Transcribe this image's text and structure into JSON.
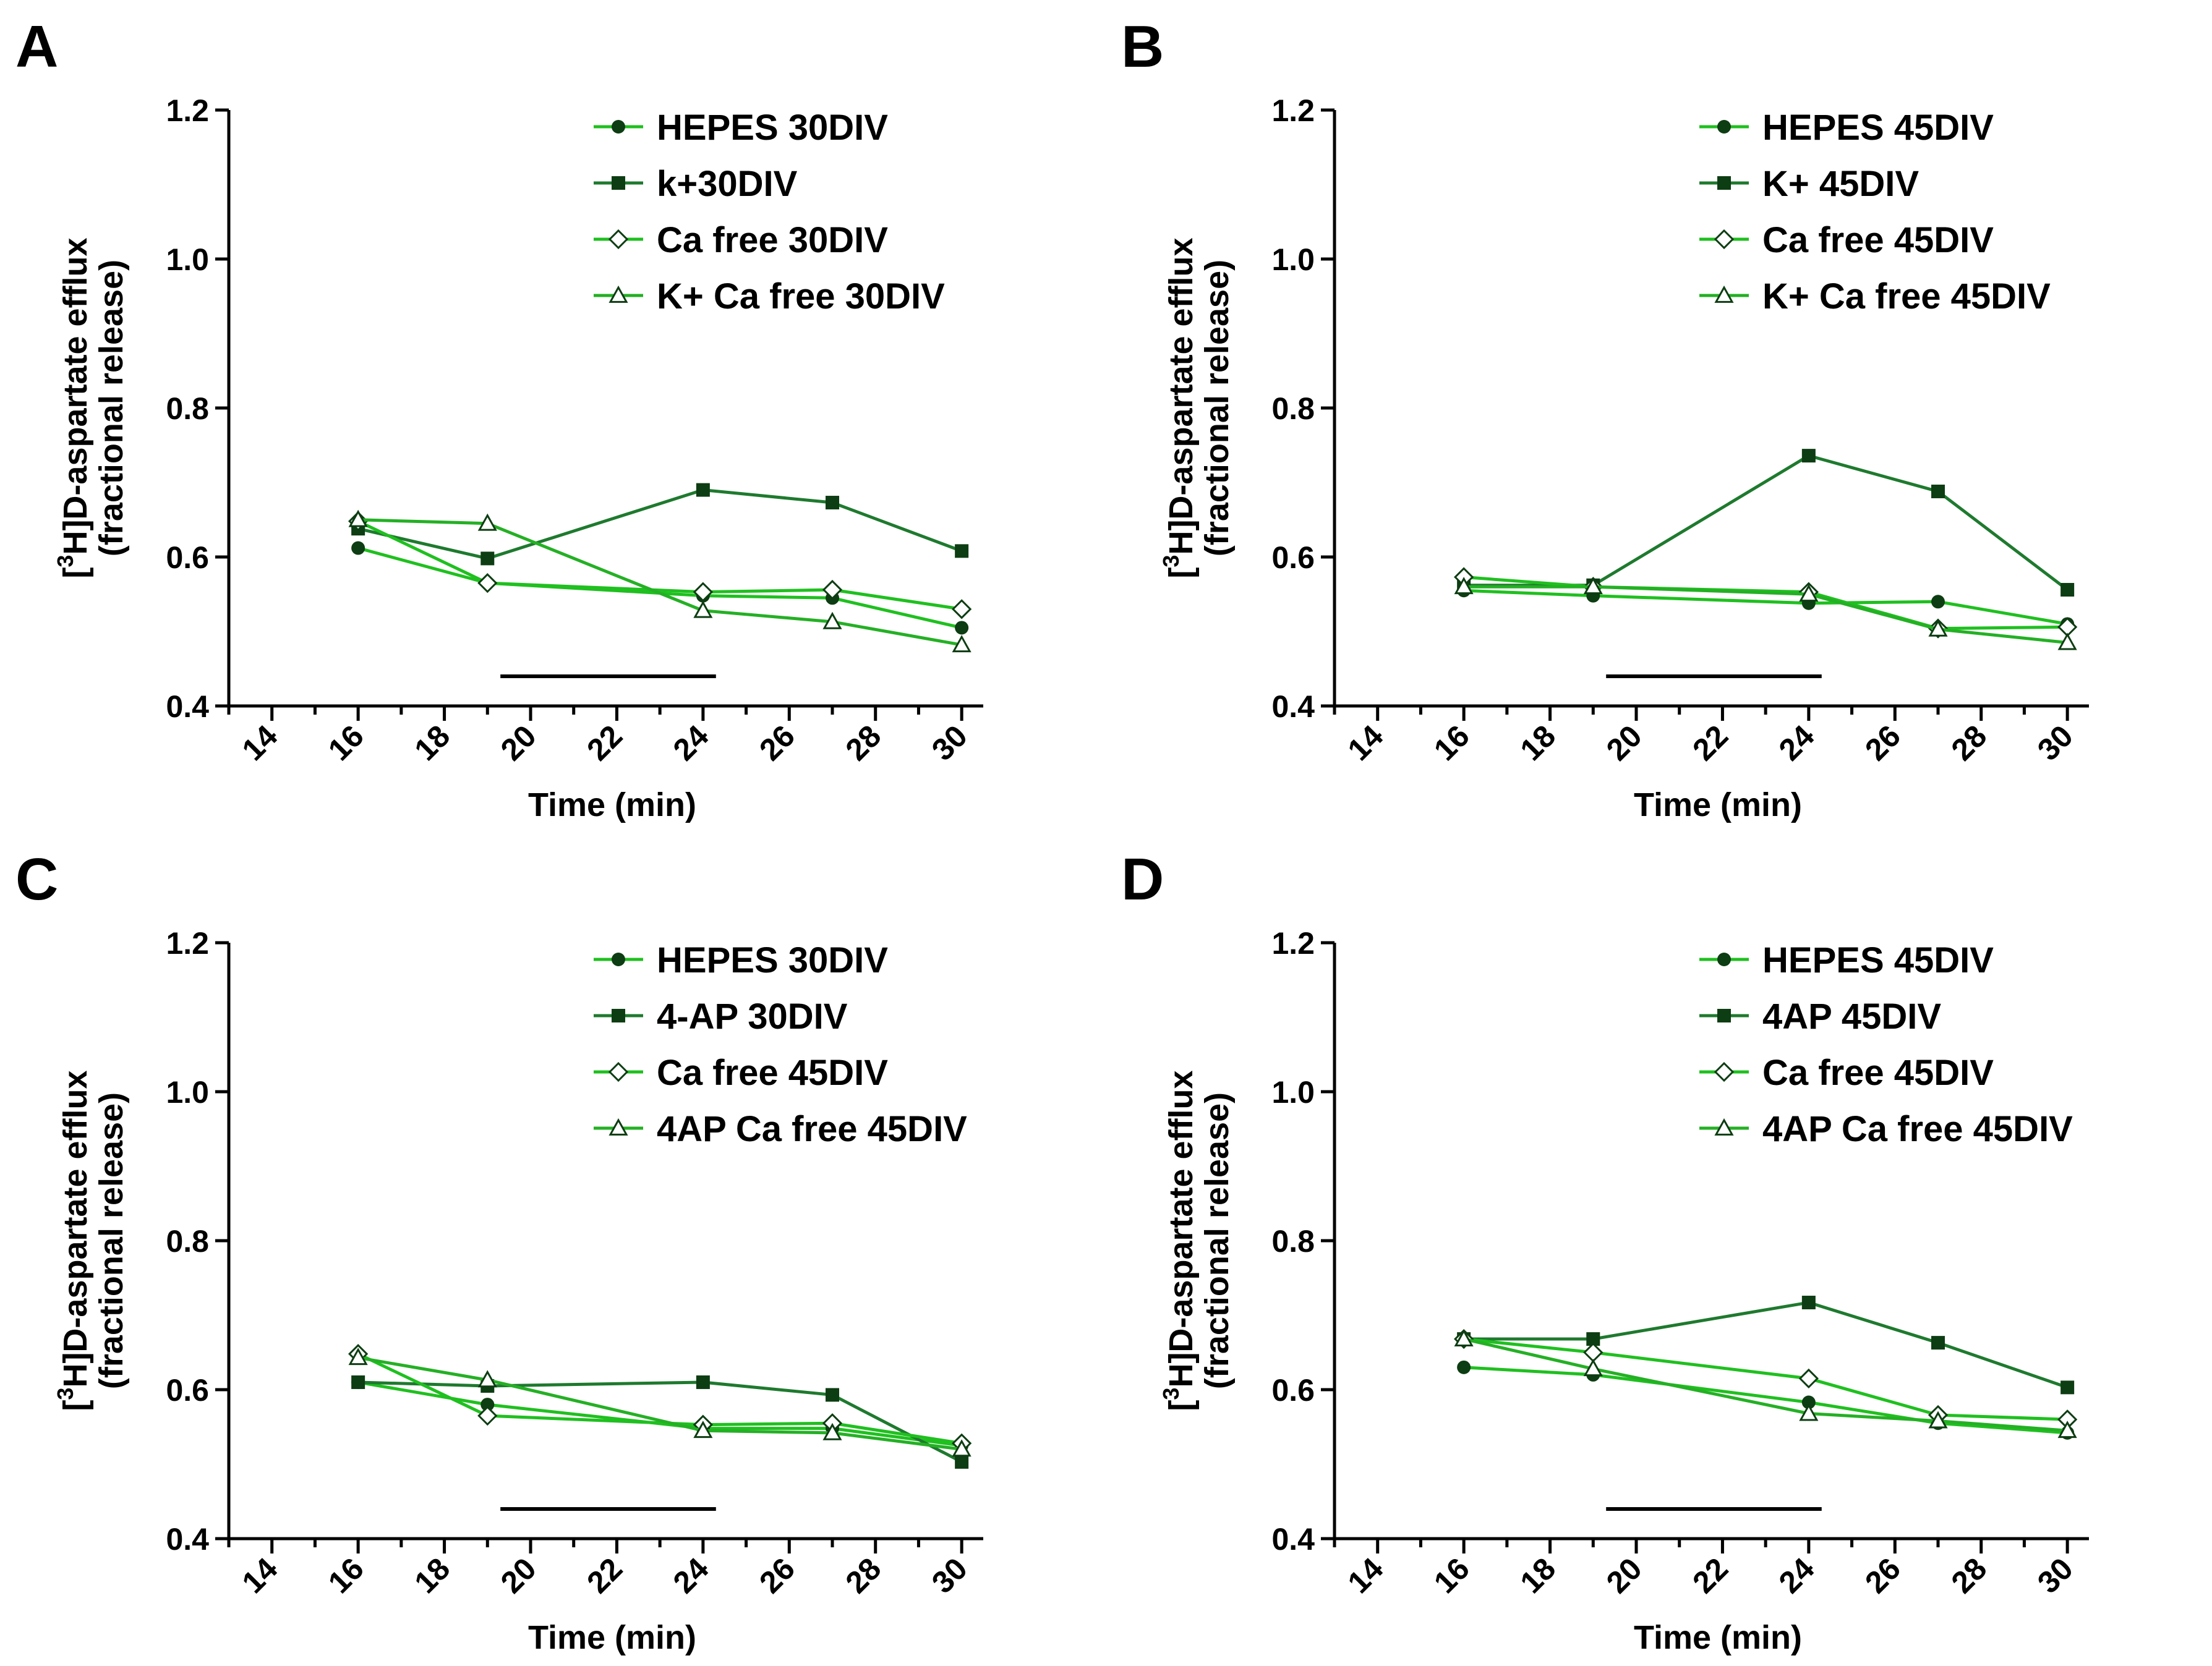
{
  "colors": {
    "bright_green": "#1fc01f",
    "dark_green": "#1e7a2e",
    "mid_green": "#24b024",
    "marker_dark": "#0d3d12",
    "axis": "#000000"
  },
  "chart_data": [
    {
      "panel": "A",
      "type": "line",
      "xlabel": "Time (min)",
      "ylabel_line1": "[3H]D-aspartate efflux",
      "ylabel_line2": "(fractional release)",
      "xlim": [
        13,
        30.5
      ],
      "ylim": [
        0.4,
        1.2
      ],
      "xticks": [
        14,
        16,
        18,
        20,
        22,
        24,
        26,
        28,
        30
      ],
      "yticks": [
        0.4,
        0.6,
        0.8,
        1.0,
        1.2
      ],
      "ytick_labels": [
        "0.4",
        "0.6",
        "0.8",
        "1.0",
        "1.2"
      ],
      "stimulus_bar": [
        19.3,
        24.3
      ],
      "legend_position": "top-right",
      "series": [
        {
          "name": "HEPES 30DIV",
          "marker": "circle",
          "x": [
            16,
            19,
            24,
            27,
            30
          ],
          "values": [
            0.612,
            0.565,
            0.548,
            0.545,
            0.505
          ]
        },
        {
          "name": "k+30DIV",
          "marker": "square",
          "x": [
            16,
            19,
            24,
            27,
            30
          ],
          "values": [
            0.638,
            0.598,
            0.69,
            0.673,
            0.608
          ]
        },
        {
          "name": "Ca free 30DIV",
          "marker": "diamond",
          "x": [
            16,
            19,
            24,
            27,
            30
          ],
          "values": [
            0.648,
            0.565,
            0.553,
            0.556,
            0.53
          ]
        },
        {
          "name": "K+ Ca free 30DIV",
          "marker": "triangle",
          "x": [
            16,
            19,
            24,
            27,
            30
          ],
          "values": [
            0.65,
            0.645,
            0.528,
            0.513,
            0.482
          ]
        }
      ]
    },
    {
      "panel": "B",
      "type": "line",
      "xlabel": "Time (min)",
      "ylabel_line1": "[3H]D-aspartate efflux",
      "ylabel_line2": "(fractional release)",
      "xlim": [
        13,
        30.5
      ],
      "ylim": [
        0.4,
        1.2
      ],
      "xticks": [
        14,
        16,
        18,
        20,
        22,
        24,
        26,
        28,
        30
      ],
      "yticks": [
        0.4,
        0.6,
        0.8,
        1.0,
        1.2
      ],
      "ytick_labels": [
        "0.4",
        "0.6",
        "0.8",
        "1.0",
        "1.2"
      ],
      "stimulus_bar": [
        19.3,
        24.3
      ],
      "legend_position": "top-right",
      "series": [
        {
          "name": "HEPES 45DIV",
          "marker": "circle",
          "x": [
            16,
            19,
            24,
            27,
            30
          ],
          "values": [
            0.555,
            0.548,
            0.538,
            0.54,
            0.51
          ]
        },
        {
          "name": "K+ 45DIV",
          "marker": "square",
          "x": [
            16,
            19,
            24,
            27,
            30
          ],
          "values": [
            0.562,
            0.562,
            0.736,
            0.688,
            0.556
          ]
        },
        {
          "name": "Ca free 45DIV",
          "marker": "diamond",
          "x": [
            16,
            19,
            24,
            27,
            30
          ],
          "values": [
            0.573,
            0.56,
            0.553,
            0.504,
            0.506
          ]
        },
        {
          "name": "K+ Ca free 45DIV",
          "marker": "triangle",
          "x": [
            16,
            19,
            24,
            27,
            30
          ],
          "values": [
            0.56,
            0.56,
            0.55,
            0.503,
            0.485
          ]
        }
      ]
    },
    {
      "panel": "C",
      "type": "line",
      "xlabel": "Time (min)",
      "ylabel_line1": "[3H]D-aspartate efflux",
      "ylabel_line2": "(fractional release)",
      "xlim": [
        13,
        30.5
      ],
      "ylim": [
        0.4,
        1.2
      ],
      "xticks": [
        14,
        16,
        18,
        20,
        22,
        24,
        26,
        28,
        30
      ],
      "yticks": [
        0.4,
        0.6,
        0.8,
        1.0,
        1.2
      ],
      "ytick_labels": [
        "0.4",
        "0.6",
        "0.8",
        "1.0",
        "1.2"
      ],
      "stimulus_bar": [
        19.3,
        24.3
      ],
      "legend_position": "top-right",
      "series": [
        {
          "name": "HEPES 30DIV",
          "marker": "circle",
          "x": [
            16,
            19,
            24,
            27,
            30
          ],
          "values": [
            0.61,
            0.58,
            0.548,
            0.548,
            0.525
          ]
        },
        {
          "name": "4-AP 30DIV",
          "marker": "square",
          "x": [
            16,
            19,
            24,
            27,
            30
          ],
          "values": [
            0.61,
            0.605,
            0.61,
            0.593,
            0.503
          ]
        },
        {
          "name": "Ca free 45DIV",
          "marker": "diamond",
          "x": [
            16,
            19,
            24,
            27,
            30
          ],
          "values": [
            0.648,
            0.565,
            0.553,
            0.555,
            0.528
          ]
        },
        {
          "name": "4AP Ca free 45DIV",
          "marker": "triangle",
          "x": [
            16,
            19,
            24,
            27,
            30
          ],
          "values": [
            0.643,
            0.613,
            0.545,
            0.542,
            0.52
          ]
        }
      ]
    },
    {
      "panel": "D",
      "type": "line",
      "xlabel": "Time (min)",
      "ylabel_line1": "[3H]D-aspartate efflux",
      "ylabel_line2": "(fractional release)",
      "xlim": [
        13,
        30.5
      ],
      "ylim": [
        0.4,
        1.2
      ],
      "xticks": [
        14,
        16,
        18,
        20,
        22,
        24,
        26,
        28,
        30
      ],
      "yticks": [
        0.4,
        0.6,
        0.8,
        1.0,
        1.2
      ],
      "ytick_labels": [
        "0.4",
        "0.6",
        "0.8",
        "1.0",
        "1.2"
      ],
      "stimulus_bar": [
        19.3,
        24.3
      ],
      "legend_position": "top-right",
      "series": [
        {
          "name": "HEPES 45DIV",
          "marker": "circle",
          "x": [
            16,
            19,
            24,
            27,
            30
          ],
          "values": [
            0.63,
            0.62,
            0.583,
            0.555,
            0.542
          ]
        },
        {
          "name": "4AP 45DIV",
          "marker": "square",
          "x": [
            16,
            19,
            24,
            27,
            30
          ],
          "values": [
            0.668,
            0.668,
            0.717,
            0.663,
            0.603
          ]
        },
        {
          "name": "Ca free 45DIV",
          "marker": "diamond",
          "x": [
            16,
            19,
            24,
            27,
            30
          ],
          "values": [
            0.668,
            0.65,
            0.615,
            0.566,
            0.56
          ]
        },
        {
          "name": "4AP Ca free 45DIV",
          "marker": "triangle",
          "x": [
            16,
            19,
            24,
            27,
            30
          ],
          "values": [
            0.668,
            0.628,
            0.568,
            0.558,
            0.545
          ]
        }
      ]
    }
  ]
}
